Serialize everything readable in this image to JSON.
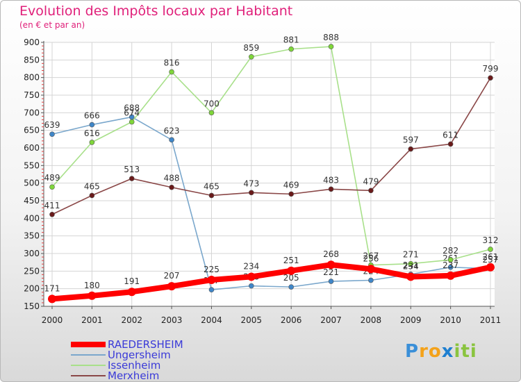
{
  "title": "Evolution des Impôts locaux par Habitant",
  "subtitle": "(en € et par an)",
  "logo_text": "Proxiti",
  "chart_data": {
    "type": "line",
    "title": "Evolution des Impôts locaux par Habitant",
    "subtitle": "(en € et par an)",
    "xlabel": "",
    "ylabel": "",
    "x": [
      "2000",
      "2001",
      "2002",
      "2003",
      "2004",
      "2005",
      "2006",
      "2007",
      "2008",
      "2009",
      "2010",
      "2011"
    ],
    "ylim": [
      150,
      900
    ],
    "yticks": [
      150,
      200,
      250,
      300,
      350,
      400,
      450,
      500,
      550,
      600,
      650,
      700,
      750,
      800,
      850,
      900
    ],
    "grid": true,
    "legend": "bottom-left",
    "series": [
      {
        "name": "RAEDERSHEIM",
        "color": "#ff0000",
        "marker_color": "#ff0000",
        "values": [
          171,
          180,
          191,
          207,
          225,
          234,
          251,
          268,
          256,
          234,
          237,
          261
        ]
      },
      {
        "name": "Ungersheim",
        "color": "#7aa7cc",
        "marker_color": "#3f86c8",
        "values": [
          639,
          666,
          688,
          623,
          197,
          208,
          205,
          221,
          224,
          241,
          261,
          257
        ]
      },
      {
        "name": "Issenheim",
        "color": "#a8e08a",
        "marker_color": "#7fd63a",
        "values": [
          489,
          616,
          674,
          816,
          700,
          859,
          881,
          888,
          267,
          271,
          282,
          312
        ]
      },
      {
        "name": "Merxheim",
        "color": "#8a4747",
        "marker_color": "#6a1a1a",
        "values": [
          411,
          465,
          513,
          488,
          465,
          473,
          469,
          483,
          479,
          597,
          611,
          799
        ]
      }
    ]
  }
}
